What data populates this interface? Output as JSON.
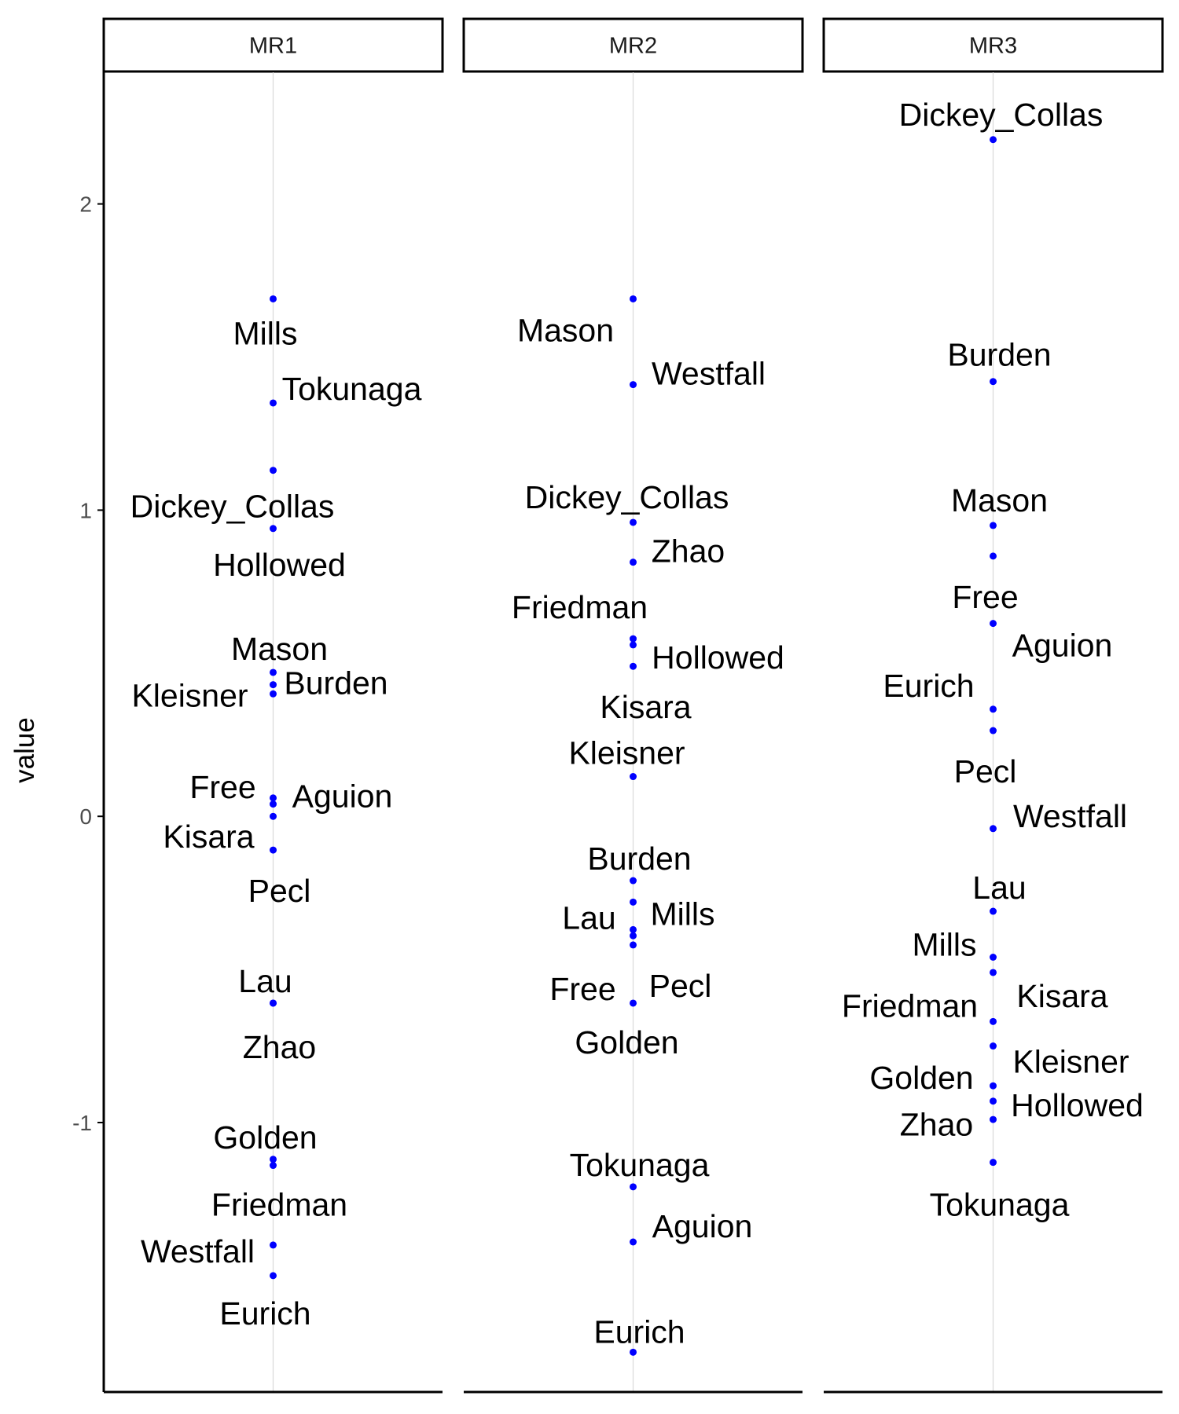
{
  "chart_data": {
    "type": "scatter",
    "ylabel": "value",
    "yticks": [
      -1,
      0,
      1,
      2
    ],
    "ylim": [
      -1.88,
      2.43
    ],
    "grid": "vertical center line per panel only",
    "colors": {
      "point": "#0000ff",
      "gridline": "#d9d9d9",
      "axis": "#000000"
    },
    "panels": [
      {
        "name": "MR1",
        "points": [
          {
            "label": "Mills",
            "value": 1.69
          },
          {
            "label": "Tokunaga",
            "value": 1.35
          },
          {
            "label": "Dickey_Collas",
            "value": 1.13
          },
          {
            "label": "Hollowed",
            "value": 0.94
          },
          {
            "label": "Mason",
            "value": 0.47
          },
          {
            "label": "Kleisner",
            "value": 0.43
          },
          {
            "label": "Burden",
            "value": 0.4
          },
          {
            "label": "Free",
            "value": 0.06
          },
          {
            "label": "Aguion",
            "value": 0.04
          },
          {
            "label": "Kisara",
            "value": 0.0
          },
          {
            "label": "Pecl",
            "value": -0.11
          },
          {
            "label": "Lau",
            "value": -0.61
          },
          {
            "label": "Zhao",
            "value": -0.61
          },
          {
            "label": "Golden",
            "value": -1.12
          },
          {
            "label": "Friedman",
            "value": -1.14
          },
          {
            "label": "Westfall",
            "value": -1.4
          },
          {
            "label": "Eurich",
            "value": -1.5
          }
        ]
      },
      {
        "name": "MR2",
        "points": [
          {
            "label": "Mason",
            "value": 1.69
          },
          {
            "label": "Westfall",
            "value": 1.41
          },
          {
            "label": "Dickey_Collas",
            "value": 0.96
          },
          {
            "label": "Zhao",
            "value": 0.83
          },
          {
            "label": "Friedman",
            "value": 0.58
          },
          {
            "label": "Hollowed",
            "value": 0.56
          },
          {
            "label": "Kisara",
            "value": 0.49
          },
          {
            "label": "Kleisner",
            "value": 0.13
          },
          {
            "label": "Burden",
            "value": -0.21
          },
          {
            "label": "Lau",
            "value": -0.28
          },
          {
            "label": "Mills",
            "value": -0.37
          },
          {
            "label": "Free",
            "value": -0.39
          },
          {
            "label": "Pecl",
            "value": -0.42
          },
          {
            "label": "Golden",
            "value": -0.61
          },
          {
            "label": "Tokunaga",
            "value": -1.21
          },
          {
            "label": "Aguion",
            "value": -1.39
          },
          {
            "label": "Eurich",
            "value": -1.75
          }
        ]
      },
      {
        "name": "MR3",
        "points": [
          {
            "label": "Dickey_Collas",
            "value": 2.21
          },
          {
            "label": "Burden",
            "value": 1.42
          },
          {
            "label": "Mason",
            "value": 0.95
          },
          {
            "label": "Free",
            "value": 0.85
          },
          {
            "label": "Aguion",
            "value": 0.63
          },
          {
            "label": "Eurich",
            "value": 0.35
          },
          {
            "label": "Pecl",
            "value": 0.28
          },
          {
            "label": "Westfall",
            "value": -0.04
          },
          {
            "label": "Lau",
            "value": -0.31
          },
          {
            "label": "Mills",
            "value": -0.46
          },
          {
            "label": "Kisara",
            "value": -0.51
          },
          {
            "label": "Friedman",
            "value": -0.67
          },
          {
            "label": "Kleisner",
            "value": -0.75
          },
          {
            "label": "Golden",
            "value": -0.88
          },
          {
            "label": "Zhao",
            "value": -0.93
          },
          {
            "label": "Hollowed",
            "value": -0.99
          },
          {
            "label": "Tokunaga",
            "value": -1.13
          }
        ]
      }
    ]
  }
}
